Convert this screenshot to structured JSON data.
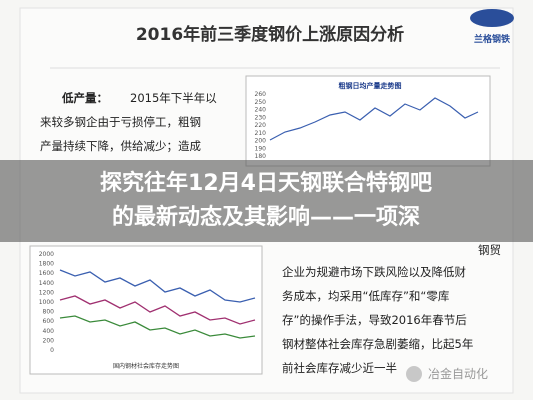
{
  "header": {
    "title": "2016年前三季度钢价上涨原因分析",
    "logo": "兰格钢铁"
  },
  "left_text": {
    "label": "低产量：",
    "lines": [
      "2015年下半年以",
      "来较多钢企由于亏损停工，粗钢",
      "产量持续下降，供给减少；造成"
    ]
  },
  "top_chart": {
    "title": "粗钢日均产量走势图",
    "yticks": [
      "260",
      "250",
      "240",
      "230",
      "220",
      "210",
      "200",
      "190",
      "180"
    ]
  },
  "banner": {
    "lines": [
      "探究往年12月4日天钢联合特钢吧",
      "的最新动态及其影响——一项深"
    ]
  },
  "bottom_chart": {
    "title": "国内钢材社会库存走势图",
    "yticks": [
      "2000",
      "1800",
      "1600",
      "1400",
      "1200",
      "1000",
      "800",
      "600",
      "400",
      "200",
      "0"
    ]
  },
  "right_text": {
    "lines": [
      "钢贸",
      "企业为规避市场下跌风险以及降低财",
      "务成本，均采用“低库存”和“零库",
      "存”的操作手法，导致2016年春节后",
      "钢材整体社会库存急剧萎缩，比起5年",
      "前社会库存减少近一半"
    ]
  },
  "watermark": "冶金自动化"
}
